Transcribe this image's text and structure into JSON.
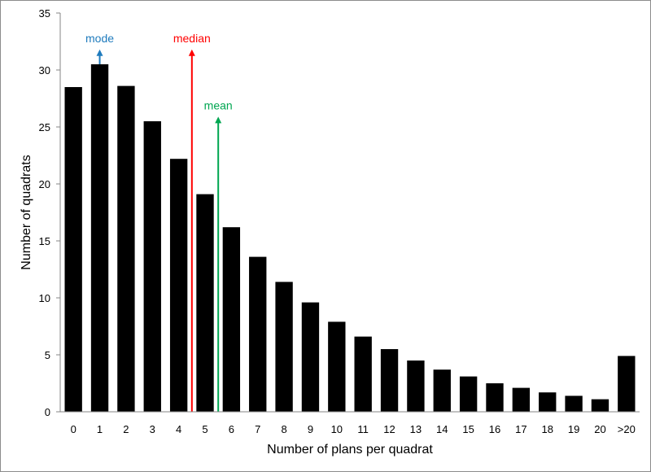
{
  "chart_data": {
    "type": "bar",
    "title": "",
    "xlabel": "Number of plans per quadrat",
    "ylabel": "Number of quadrats",
    "ylim": [
      0,
      35
    ],
    "yticks": [
      0,
      5,
      10,
      15,
      20,
      25,
      30,
      35
    ],
    "grid": false,
    "legend": "none",
    "bar_color": "#000000",
    "categories": [
      "0",
      "1",
      "2",
      "3",
      "4",
      "5",
      "6",
      "7",
      "8",
      "9",
      "10",
      "11",
      "12",
      "13",
      "14",
      "15",
      "16",
      "17",
      "18",
      "19",
      "20",
      ">20"
    ],
    "values": [
      28.5,
      30.5,
      28.6,
      25.5,
      22.2,
      19.1,
      16.2,
      13.6,
      11.4,
      9.6,
      7.9,
      6.6,
      5.5,
      4.5,
      3.7,
      3.1,
      2.5,
      2.1,
      1.7,
      1.4,
      1.1,
      4.9
    ],
    "annotations": [
      {
        "label": "mode",
        "x": 1,
        "y_from": 30.5,
        "y_to": 31.8,
        "color": "#1f7bbd"
      },
      {
        "label": "median",
        "x": 4.5,
        "y_from": 0,
        "y_to": 31.8,
        "color": "#ff0000"
      },
      {
        "label": "mean",
        "x": 5.5,
        "y_from": 0,
        "y_to": 25.9,
        "color": "#00a651"
      }
    ]
  }
}
